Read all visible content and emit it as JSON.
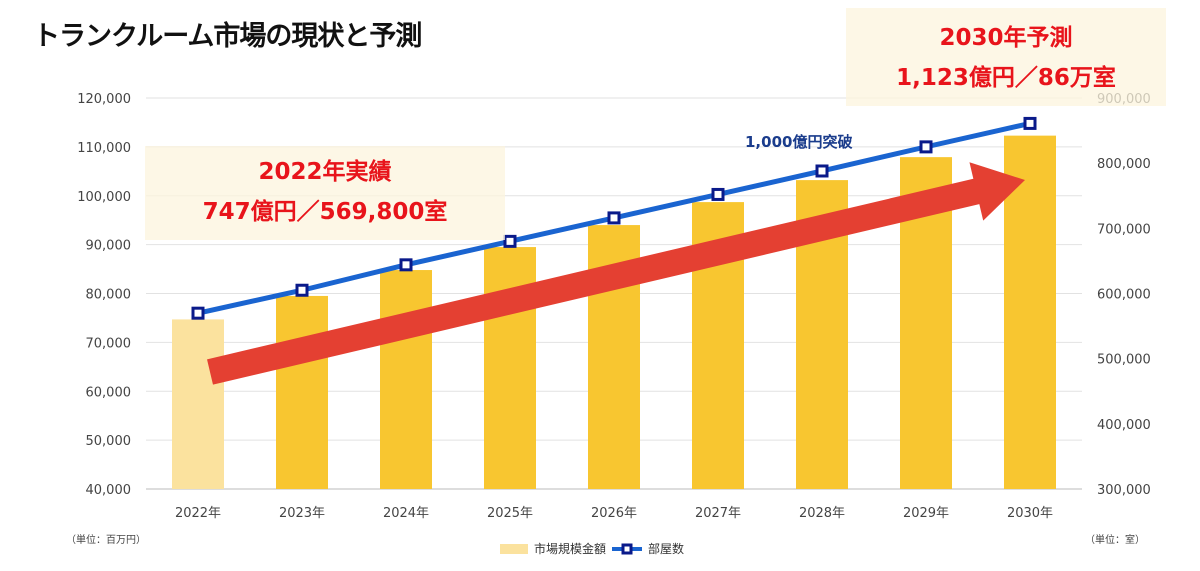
{
  "title": "トランクルーム市場の現状と予測",
  "annotations": {
    "actual_title": "2022年実績",
    "actual_value": "747億円／569,800室",
    "forecast_title": "2030年予測",
    "forecast_value": "1,123億円／86万室",
    "milestone": "1,000億円突破"
  },
  "chart_data": {
    "type": "bar+line",
    "categories": [
      "2022年",
      "2023年",
      "2024年",
      "2025年",
      "2026年",
      "2027年",
      "2028年",
      "2029年",
      "2030年"
    ],
    "series": [
      {
        "name": "市場規模金額",
        "type": "bar",
        "axis": "left",
        "values": [
          74700,
          79500,
          84800,
          89500,
          94000,
          98700,
          103200,
          107900,
          112300
        ],
        "color": "#f8c630",
        "first_color": "#fbe29e"
      },
      {
        "name": "部屋数",
        "type": "line",
        "axis": "right",
        "values": [
          569800,
          605000,
          644000,
          680000,
          716000,
          752000,
          788000,
          825000,
          861000
        ],
        "color": "#1a64d0",
        "marker_color": "#0a1a8a"
      }
    ],
    "y_left": {
      "range": [
        40000,
        120000
      ],
      "ticks": [
        "40,000",
        "50,000",
        "60,000",
        "70,000",
        "80,000",
        "90,000",
        "100,000",
        "110,000",
        "120,000"
      ],
      "unit": "（単位：百万円）"
    },
    "y_right": {
      "range": [
        300000,
        900000
      ],
      "ticks": [
        "300,000",
        "400,000",
        "500,000",
        "600,000",
        "700,000",
        "800,000",
        "900,000"
      ],
      "unit": "（単位：室）"
    },
    "grid": true,
    "legend": "bottom",
    "trend_arrow_color": "#e44032"
  }
}
